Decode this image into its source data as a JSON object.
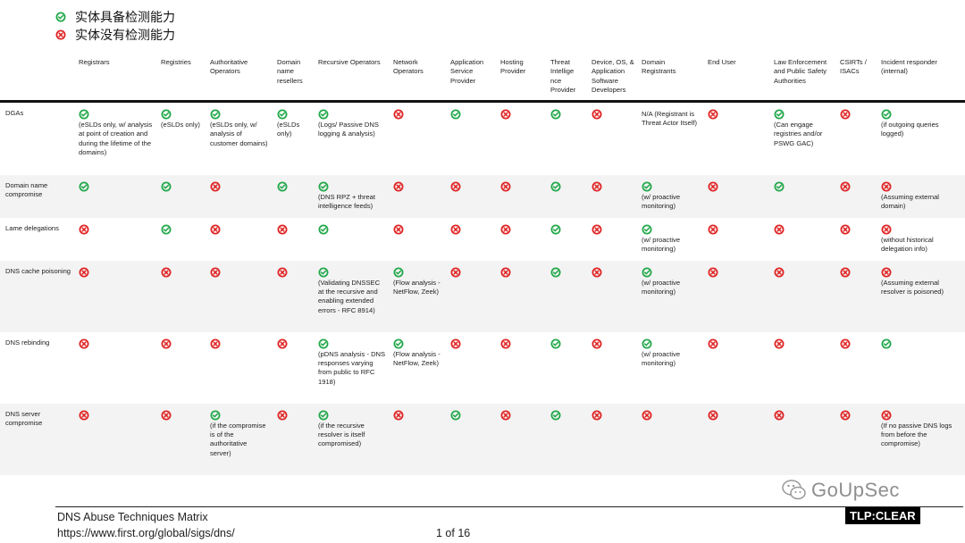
{
  "legend": {
    "yes_label": "实体具备检测能力",
    "no_label": "实体没有检测能力"
  },
  "colors": {
    "yes": "#22a84a",
    "no": "#e02424"
  },
  "table": {
    "headers": [
      "",
      "Registrars",
      "Registries",
      "Authoritative Operators",
      "Domain name resellers",
      "Recursive Operators",
      "Network Operators",
      "Application Service Provider",
      "Hosting Provider",
      "Threat Intellige nce Provider",
      "Device, OS, & Application Software Developers",
      "Domain Registrants",
      "End User",
      "Law Enforcement and Public Safety Authorities",
      "CSIRTs / ISACs",
      "Incident responder (internal)"
    ],
    "rows": [
      {
        "label": "DGAs",
        "cells": [
          {
            "status": "yes",
            "note": "(eSLDs only, w/ analysis at point of creation and during the lifetime of the domains)"
          },
          {
            "status": "yes",
            "note": "(eSLDs only)"
          },
          {
            "status": "yes",
            "note": "(eSLDs only, w/ analysis of customer domains)"
          },
          {
            "status": "yes",
            "note": "(eSLDs only)"
          },
          {
            "status": "yes",
            "note": "(Logs/ Passive DNS logging & analysis)"
          },
          {
            "status": "no",
            "note": ""
          },
          {
            "status": "yes",
            "note": ""
          },
          {
            "status": "no",
            "note": ""
          },
          {
            "status": "yes",
            "note": ""
          },
          {
            "status": "no",
            "note": ""
          },
          {
            "status": "na",
            "note": "N/A (Registrant is Threat Actor Itself)"
          },
          {
            "status": "no",
            "note": ""
          },
          {
            "status": "yes",
            "note": "(Can engage registries and/or PSWG GAC)"
          },
          {
            "status": "no",
            "note": ""
          },
          {
            "status": "yes",
            "note": "(if outgoing queries logged)"
          }
        ]
      },
      {
        "label": "Domain name compromise",
        "cells": [
          {
            "status": "yes",
            "note": ""
          },
          {
            "status": "yes",
            "note": ""
          },
          {
            "status": "no",
            "note": ""
          },
          {
            "status": "yes",
            "note": ""
          },
          {
            "status": "yes",
            "note": "(DNS RPZ + threat intelligence feeds)"
          },
          {
            "status": "no",
            "note": ""
          },
          {
            "status": "no",
            "note": ""
          },
          {
            "status": "no",
            "note": ""
          },
          {
            "status": "yes",
            "note": ""
          },
          {
            "status": "no",
            "note": ""
          },
          {
            "status": "yes",
            "note": "(w/ proactive monitoring)"
          },
          {
            "status": "no",
            "note": ""
          },
          {
            "status": "yes",
            "note": ""
          },
          {
            "status": "no",
            "note": ""
          },
          {
            "status": "no",
            "note": "(Assuming external domain)"
          }
        ]
      },
      {
        "label": "Lame delegations",
        "cells": [
          {
            "status": "no",
            "note": ""
          },
          {
            "status": "yes",
            "note": ""
          },
          {
            "status": "no",
            "note": ""
          },
          {
            "status": "no",
            "note": ""
          },
          {
            "status": "yes",
            "note": ""
          },
          {
            "status": "no",
            "note": ""
          },
          {
            "status": "no",
            "note": ""
          },
          {
            "status": "no",
            "note": ""
          },
          {
            "status": "yes",
            "note": ""
          },
          {
            "status": "no",
            "note": ""
          },
          {
            "status": "yes",
            "note": "(w/ proactive monitoring)"
          },
          {
            "status": "no",
            "note": ""
          },
          {
            "status": "no",
            "note": ""
          },
          {
            "status": "no",
            "note": ""
          },
          {
            "status": "no",
            "note": "(without historical delegation info)"
          }
        ]
      },
      {
        "label": "DNS cache poisoning",
        "cells": [
          {
            "status": "no",
            "note": ""
          },
          {
            "status": "no",
            "note": ""
          },
          {
            "status": "no",
            "note": ""
          },
          {
            "status": "no",
            "note": ""
          },
          {
            "status": "yes",
            "note": "(Validating DNSSEC at the recursive and enabling extended errors - RFC 8914)"
          },
          {
            "status": "yes",
            "note": "(Flow analysis - NetFlow, Zeek)"
          },
          {
            "status": "no",
            "note": ""
          },
          {
            "status": "no",
            "note": ""
          },
          {
            "status": "yes",
            "note": ""
          },
          {
            "status": "no",
            "note": ""
          },
          {
            "status": "yes",
            "note": "(w/ proactive monitoring)"
          },
          {
            "status": "no",
            "note": ""
          },
          {
            "status": "no",
            "note": ""
          },
          {
            "status": "no",
            "note": ""
          },
          {
            "status": "no",
            "note": "(Assuming external resolver is poisoned)"
          }
        ]
      },
      {
        "label": "DNS rebinding",
        "cells": [
          {
            "status": "no",
            "note": ""
          },
          {
            "status": "no",
            "note": ""
          },
          {
            "status": "no",
            "note": ""
          },
          {
            "status": "no",
            "note": ""
          },
          {
            "status": "yes",
            "note": "(pDNS analysis - DNS responses varying from public to RFC 1918)"
          },
          {
            "status": "yes",
            "note": "(Flow analysis - NetFlow, Zeek)"
          },
          {
            "status": "no",
            "note": ""
          },
          {
            "status": "no",
            "note": ""
          },
          {
            "status": "yes",
            "note": ""
          },
          {
            "status": "no",
            "note": ""
          },
          {
            "status": "yes",
            "note": "(w/ proactive monitoring)"
          },
          {
            "status": "no",
            "note": ""
          },
          {
            "status": "no",
            "note": ""
          },
          {
            "status": "no",
            "note": ""
          },
          {
            "status": "yes",
            "note": ""
          }
        ]
      },
      {
        "label": "DNS server compromise",
        "cells": [
          {
            "status": "no",
            "note": ""
          },
          {
            "status": "no",
            "note": ""
          },
          {
            "status": "yes",
            "note": "(if the compromise is of the authoritative server)"
          },
          {
            "status": "no",
            "note": ""
          },
          {
            "status": "yes",
            "note": "(if the recursive resolver is itself compromised)"
          },
          {
            "status": "no",
            "note": ""
          },
          {
            "status": "yes",
            "note": ""
          },
          {
            "status": "no",
            "note": ""
          },
          {
            "status": "yes",
            "note": ""
          },
          {
            "status": "no",
            "note": ""
          },
          {
            "status": "no",
            "note": ""
          },
          {
            "status": "no",
            "note": ""
          },
          {
            "status": "no",
            "note": ""
          },
          {
            "status": "no",
            "note": ""
          },
          {
            "status": "no",
            "note": "(If no passive DNS logs from before the compromise)"
          }
        ]
      }
    ]
  },
  "footer": {
    "title": "DNS Abuse Techniques Matrix",
    "url": "https://www.first.org/global/sigs/dns/",
    "page": "1 of 16"
  },
  "watermark": {
    "text": "GoUpSec"
  },
  "tlp_badge": "TLP:CLEAR"
}
